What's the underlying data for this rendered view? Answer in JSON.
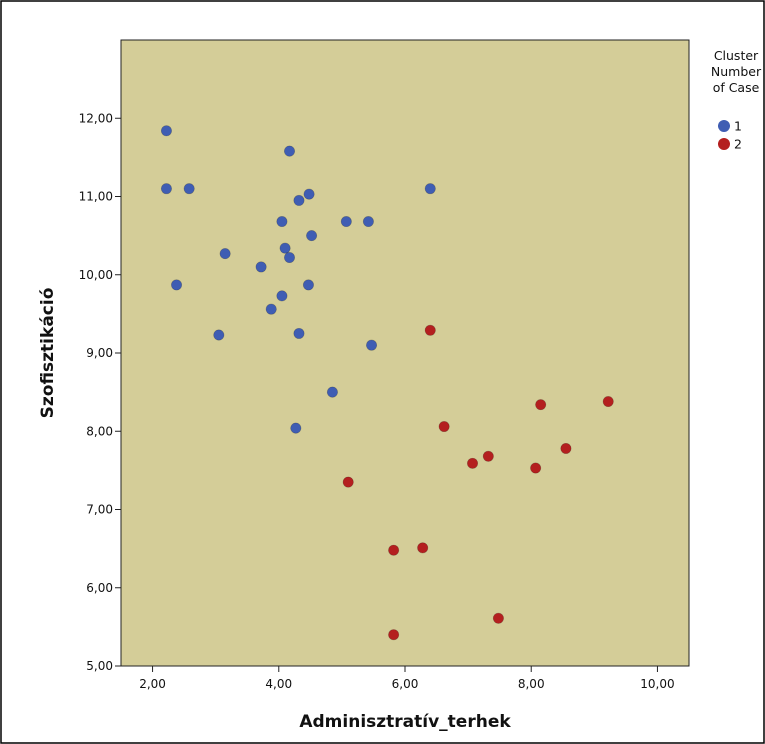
{
  "colors": {
    "plot_background": "#d4cd98",
    "cluster_1": "#3f5db3",
    "cluster_2": "#b41f1f"
  },
  "chart_data": {
    "type": "scatter",
    "title": "",
    "xlabel": "Adminisztratív_terhek",
    "ylabel": "Szofisztikáció",
    "xlim": [
      1.5,
      10.5
    ],
    "ylim": [
      5.0,
      13.0
    ],
    "xticks": [
      "2,00",
      "4,00",
      "6,00",
      "8,00",
      "10,00"
    ],
    "xtick_values": [
      2,
      4,
      6,
      8,
      10
    ],
    "yticks": [
      "5,00",
      "6,00",
      "7,00",
      "8,00",
      "9,00",
      "10,00",
      "11,00",
      "12,00"
    ],
    "ytick_values": [
      5,
      6,
      7,
      8,
      9,
      10,
      11,
      12
    ],
    "grid": false,
    "legend": {
      "title_lines": [
        "Cluster",
        "Number",
        "of Case"
      ],
      "placement": "right",
      "entries": [
        "1",
        "2"
      ]
    },
    "series": [
      {
        "name": "1",
        "color": "#3f5db3",
        "points": [
          [
            2.22,
            11.84
          ],
          [
            2.22,
            11.1
          ],
          [
            2.58,
            11.1
          ],
          [
            4.17,
            11.58
          ],
          [
            6.4,
            11.1
          ],
          [
            4.32,
            10.95
          ],
          [
            4.48,
            11.03
          ],
          [
            4.05,
            10.68
          ],
          [
            5.07,
            10.68
          ],
          [
            5.42,
            10.68
          ],
          [
            4.52,
            10.5
          ],
          [
            4.1,
            10.34
          ],
          [
            4.17,
            10.22
          ],
          [
            3.15,
            10.27
          ],
          [
            3.72,
            10.1
          ],
          [
            2.38,
            9.87
          ],
          [
            4.47,
            9.87
          ],
          [
            4.05,
            9.73
          ],
          [
            3.88,
            9.56
          ],
          [
            3.05,
            9.23
          ],
          [
            4.32,
            9.25
          ],
          [
            5.47,
            9.1
          ],
          [
            4.85,
            8.5
          ],
          [
            4.27,
            8.04
          ]
        ]
      },
      {
        "name": "2",
        "color": "#b41f1f",
        "points": [
          [
            6.4,
            9.29
          ],
          [
            8.15,
            8.34
          ],
          [
            9.22,
            8.38
          ],
          [
            6.62,
            8.06
          ],
          [
            7.32,
            7.68
          ],
          [
            7.07,
            7.59
          ],
          [
            8.55,
            7.78
          ],
          [
            8.07,
            7.53
          ],
          [
            5.1,
            7.35
          ],
          [
            5.82,
            6.48
          ],
          [
            6.28,
            6.51
          ],
          [
            7.48,
            5.61
          ],
          [
            5.82,
            5.4
          ]
        ]
      }
    ]
  }
}
